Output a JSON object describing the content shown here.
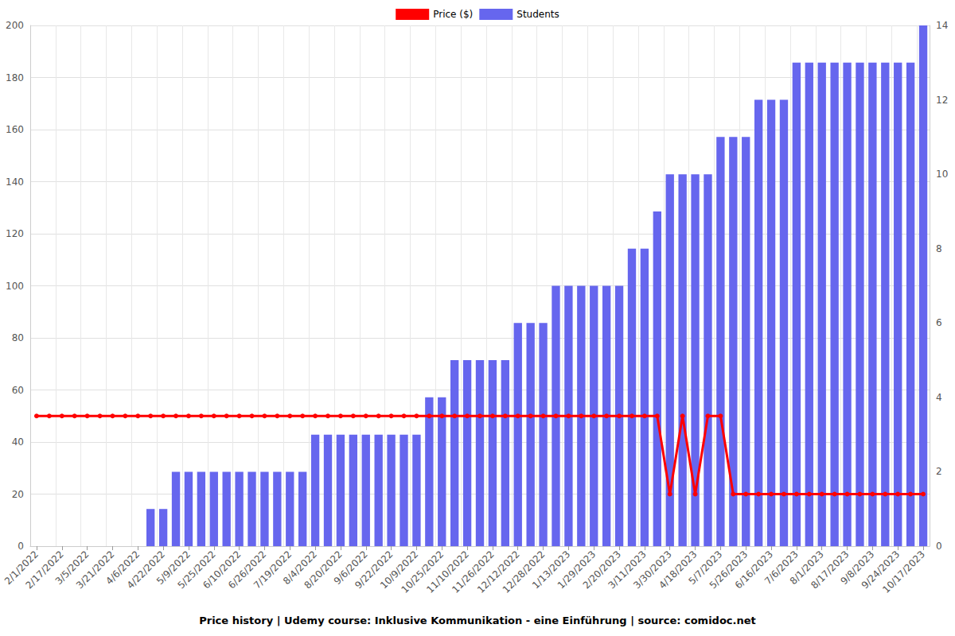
{
  "chart_data": {
    "type": "bar",
    "title": "Price history | Udemy course: Inklusive Kommunikation - eine Einführung | source: comidoc.net",
    "categories": [
      "2/1/2022",
      null,
      "2/17/2022",
      null,
      "3/5/2022",
      null,
      "3/21/2022",
      null,
      "4/6/2022",
      null,
      "4/22/2022",
      null,
      "5/9/2022",
      null,
      "5/25/2022",
      null,
      "6/10/2022",
      null,
      "6/26/2022",
      null,
      "7/19/2022",
      null,
      "8/4/2022",
      null,
      "8/20/2022",
      null,
      "9/6/2022",
      null,
      "9/22/2022",
      null,
      "10/9/2022",
      null,
      "10/25/2022",
      null,
      "11/10/2022",
      null,
      "11/26/2022",
      null,
      "12/12/2022",
      null,
      "12/28/2022",
      null,
      "1/13/2023",
      null,
      "1/29/2023",
      null,
      "2/20/2023",
      null,
      "3/11/2023",
      null,
      "3/30/2023",
      null,
      "4/18/2023",
      null,
      "5/7/2023",
      null,
      "5/26/2023",
      null,
      "6/16/2023",
      null,
      "7/6/2023",
      null,
      "8/1/2023",
      null,
      "8/17/2023",
      null,
      "9/8/2023",
      null,
      "9/24/2023",
      null,
      "10/17/2023"
    ],
    "series": [
      {
        "name": "Price ($)",
        "type": "line",
        "color": "#ff0000",
        "marker": "circle",
        "line_style": "solid",
        "values": [
          50,
          50,
          50,
          50,
          50,
          50,
          50,
          50,
          50,
          50,
          50,
          50,
          50,
          50,
          50,
          50,
          50,
          50,
          50,
          50,
          50,
          50,
          50,
          50,
          50,
          50,
          50,
          50,
          50,
          50,
          50,
          50,
          50,
          50,
          50,
          50,
          50,
          50,
          50,
          50,
          50,
          50,
          50,
          50,
          50,
          50,
          50,
          50,
          50,
          50,
          20,
          50,
          20,
          50,
          50,
          20,
          20,
          20,
          20,
          20,
          20,
          20,
          20,
          20,
          20,
          20,
          20,
          20,
          20,
          20,
          20
        ]
      },
      {
        "name": "Students",
        "type": "bar",
        "color": "#6666ee",
        "axis": "y2",
        "values": [
          0,
          0,
          0,
          0,
          0,
          0,
          0,
          0,
          0,
          1,
          1,
          2,
          2,
          2,
          2,
          2,
          2,
          2,
          2,
          2,
          2,
          2,
          3,
          3,
          3,
          3,
          3,
          3,
          3,
          3,
          3,
          4,
          4,
          5,
          5,
          5,
          5,
          5,
          6,
          6,
          6,
          7,
          7,
          7,
          7,
          7,
          7,
          8,
          8,
          9,
          10,
          10,
          10,
          10,
          11,
          11,
          11,
          12,
          12,
          12,
          13,
          13,
          13,
          13,
          13,
          13,
          13,
          13,
          13,
          13,
          14
        ]
      }
    ],
    "ylim": [
      0,
      200
    ],
    "yticks": [
      0,
      20,
      40,
      60,
      80,
      100,
      120,
      140,
      160,
      180,
      200
    ],
    "y2lim": [
      0,
      14
    ],
    "y2ticks": [
      0,
      2,
      4,
      6,
      8,
      10,
      12,
      14
    ],
    "grid": true,
    "legend": "top"
  }
}
